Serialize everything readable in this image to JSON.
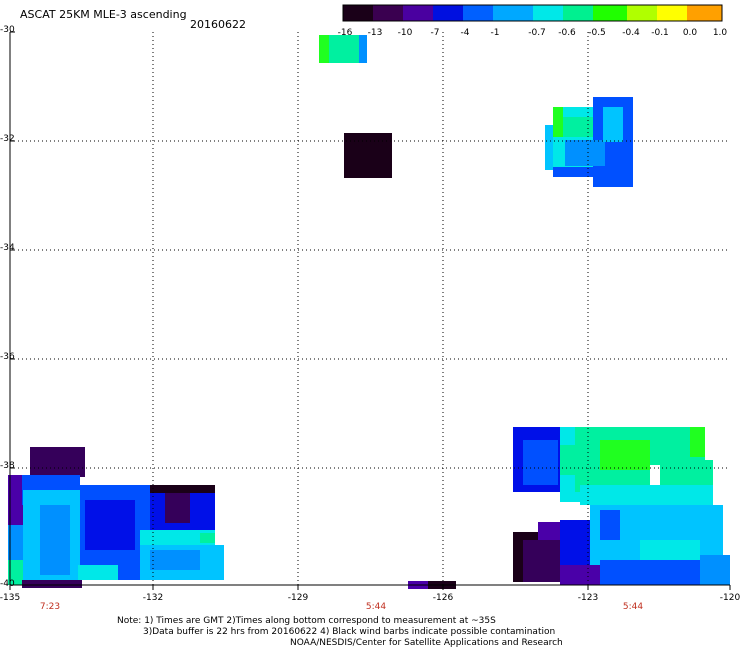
{
  "header": {
    "title": "ASCAT 25KM MLE-3 ascending",
    "date": "20160622"
  },
  "colorbar": {
    "tick_labels": [
      "-16",
      "-13",
      "-10",
      "-7",
      "-4",
      "-1",
      "-0.7",
      "-0.6",
      "-0.5",
      "-0.4",
      "-0.1",
      "0.0",
      "1.0"
    ],
    "colors": [
      "#1a0018",
      "#3a0050",
      "#4a00a0",
      "#0010e0",
      "#0060ff",
      "#00a8ff",
      "#00e8e8",
      "#00f090",
      "#20ff00",
      "#b0ff00",
      "#ffff00",
      "#ffa000",
      "#ff2000"
    ]
  },
  "map": {
    "lat_labels": [
      "-30",
      "-32",
      "-34",
      "-36",
      "-38",
      "-40"
    ],
    "lon_labels": [
      "-135",
      "-132",
      "-129",
      "-126",
      "-123",
      "-120"
    ],
    "time_labels": [
      "7:23",
      "5:44",
      "5:44"
    ],
    "colors": {
      "c1": "#1a0018",
      "c2": "#35005a",
      "c3": "#4a00a8",
      "c4": "#0010e8",
      "c5": "#0050ff",
      "c6": "#0090ff",
      "c7": "#00c4ff",
      "c8": "#00e8e8",
      "c9": "#00f0a0",
      "c10": "#20ff20"
    }
  },
  "footer": {
    "line1": "Note: 1) Times are GMT 2)Times along bottom correspond to measurement at ~35S",
    "line2": "3)Data buffer is 22 hrs from 20160622 4) Black wind barbs indicate possible contamination",
    "line3": "NOAA/NESDIS/Center for Satellite Applications and Research"
  }
}
